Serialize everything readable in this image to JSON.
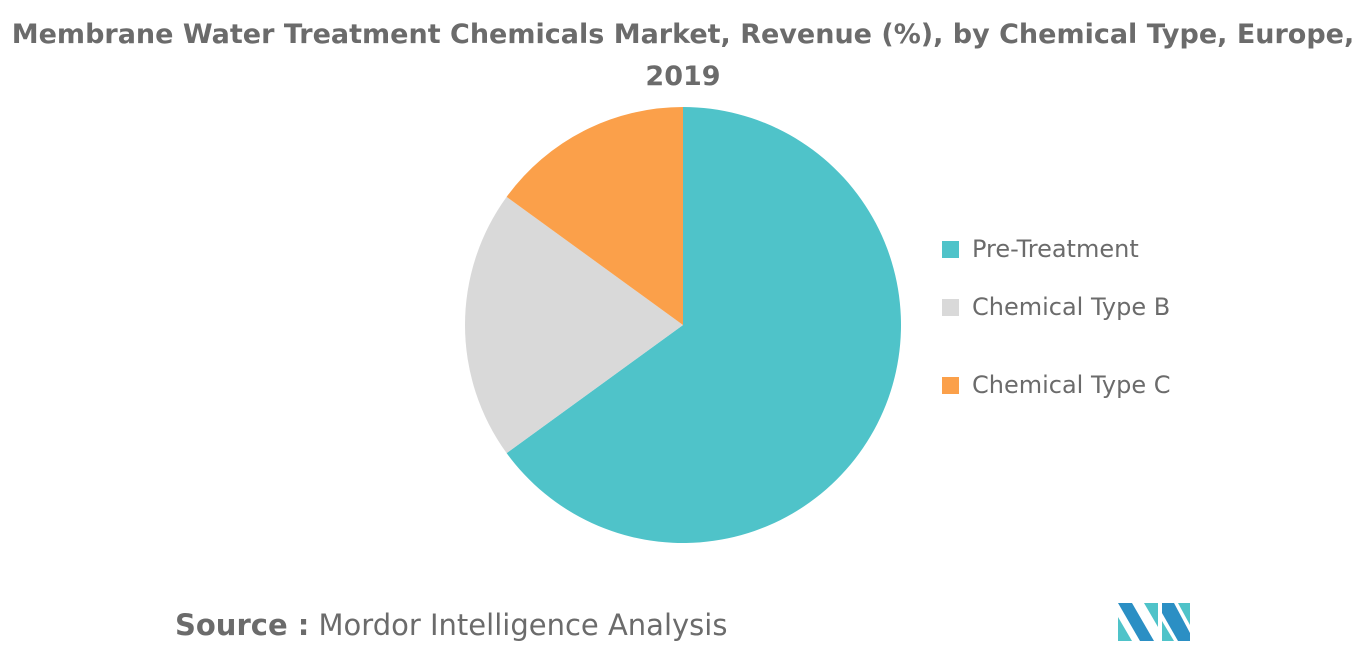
{
  "chart_data": {
    "type": "pie",
    "title": "Membrane Water Treatment Chemicals Market, Revenue (%), by Chemical Type, Europe, 2019",
    "categories": [
      "Pre-Treatment",
      "Chemical Type B",
      "Chemical Type C"
    ],
    "values": [
      65,
      20,
      15
    ],
    "colors": [
      "#4fc3c9",
      "#d9d9d9",
      "#fba04a"
    ],
    "legend_position": "right"
  },
  "source": {
    "label": "Source :",
    "text": "Mordor Intelligence Analysis"
  }
}
